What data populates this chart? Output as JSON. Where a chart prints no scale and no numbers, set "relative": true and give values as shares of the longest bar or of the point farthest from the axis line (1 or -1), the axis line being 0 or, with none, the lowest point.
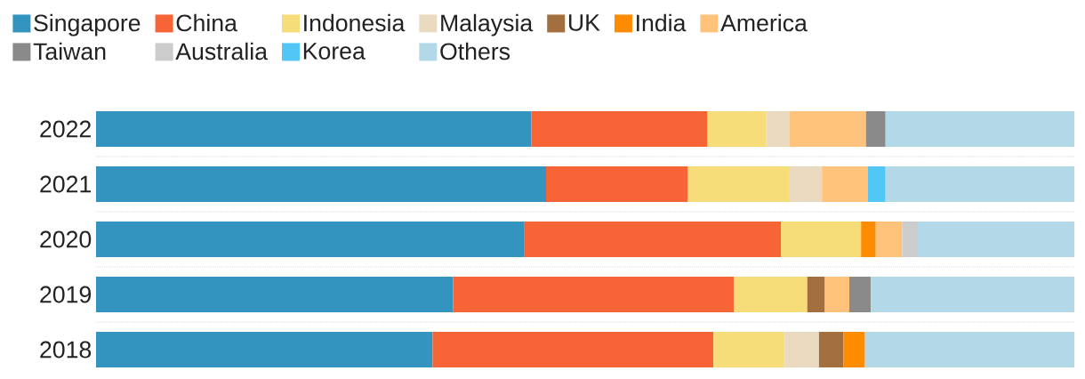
{
  "chart_data": {
    "type": "bar",
    "orientation": "horizontal",
    "stacked": true,
    "relative": true,
    "legend": "top",
    "grid": "y",
    "categories": [
      "2022",
      "2021",
      "2020",
      "2019",
      "2018"
    ],
    "series": [
      {
        "name": "Singapore",
        "color": "#3394c0",
        "values": [
          0.445,
          0.46,
          0.438,
          0.365,
          0.344
        ]
      },
      {
        "name": "China",
        "color": "#f76436",
        "values": [
          0.18,
          0.145,
          0.262,
          0.287,
          0.287
        ]
      },
      {
        "name": "Indonesia",
        "color": "#f6dd7a",
        "values": [
          0.06,
          0.104,
          0.082,
          0.075,
          0.073
        ]
      },
      {
        "name": "Malaysia",
        "color": "#e9dac0",
        "values": [
          0.024,
          0.033,
          null,
          null,
          0.035
        ]
      },
      {
        "name": "UK",
        "color": "#a36f3f",
        "values": [
          null,
          null,
          null,
          0.018,
          0.025
        ]
      },
      {
        "name": "India",
        "color": "#ff8c00",
        "values": [
          null,
          null,
          0.015,
          null,
          0.022
        ]
      },
      {
        "name": "America",
        "color": "#ffc27a",
        "values": [
          0.078,
          0.047,
          0.027,
          0.025,
          null
        ]
      },
      {
        "name": "Taiwan",
        "color": "#8a8a8a",
        "values": [
          0.02,
          null,
          null,
          0.022,
          null
        ]
      },
      {
        "name": "Australia",
        "color": "#cccccc",
        "values": [
          null,
          null,
          0.016,
          null,
          null
        ]
      },
      {
        "name": "Korea",
        "color": "#52c6f5",
        "values": [
          null,
          0.018,
          null,
          null,
          null
        ]
      },
      {
        "name": "Others",
        "color": "#b3d8e8",
        "values": [
          0.193,
          0.193,
          0.16,
          0.208,
          0.214
        ]
      }
    ]
  }
}
